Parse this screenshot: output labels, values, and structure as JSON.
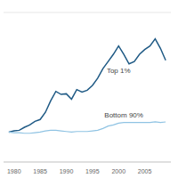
{
  "chart_data": {
    "type": "line",
    "x": [
      1979,
      1980,
      1981,
      1982,
      1983,
      1984,
      1985,
      1986,
      1987,
      1988,
      1989,
      1990,
      1991,
      1992,
      1993,
      1994,
      1995,
      1996,
      1997,
      1998,
      1999,
      2000,
      2001,
      2002,
      2003,
      2004,
      2005,
      2006,
      2007,
      2008,
      2009
    ],
    "series": [
      {
        "name": "Top 1%",
        "color": "#1f5a85",
        "values": [
          0,
          2,
          3,
          8,
          12,
          18,
          21,
          33,
          52,
          68,
          63,
          64,
          55,
          71,
          67,
          70,
          78,
          90,
          106,
          118,
          130,
          144,
          130,
          114,
          118,
          130,
          138,
          144,
          156,
          140,
          120
        ]
      },
      {
        "name": "Bottom 90%",
        "color": "#8fc3e3",
        "values": [
          0,
          -1,
          -1,
          -2,
          -2,
          -1,
          0,
          2,
          3,
          3,
          2,
          1,
          0,
          1,
          1,
          1,
          2,
          3,
          6,
          10,
          12,
          15,
          16,
          16,
          16,
          16,
          16,
          16,
          17,
          16,
          17
        ]
      }
    ],
    "xlim": [
      1978,
      2010
    ],
    "xticks": [
      1980,
      1985,
      1990,
      1995,
      2000,
      2005
    ],
    "ylim": [
      -50,
      200
    ],
    "yticks": [
      -50,
      0,
      50,
      100,
      150,
      200
    ],
    "grid": true,
    "tick_labels": "x"
  }
}
